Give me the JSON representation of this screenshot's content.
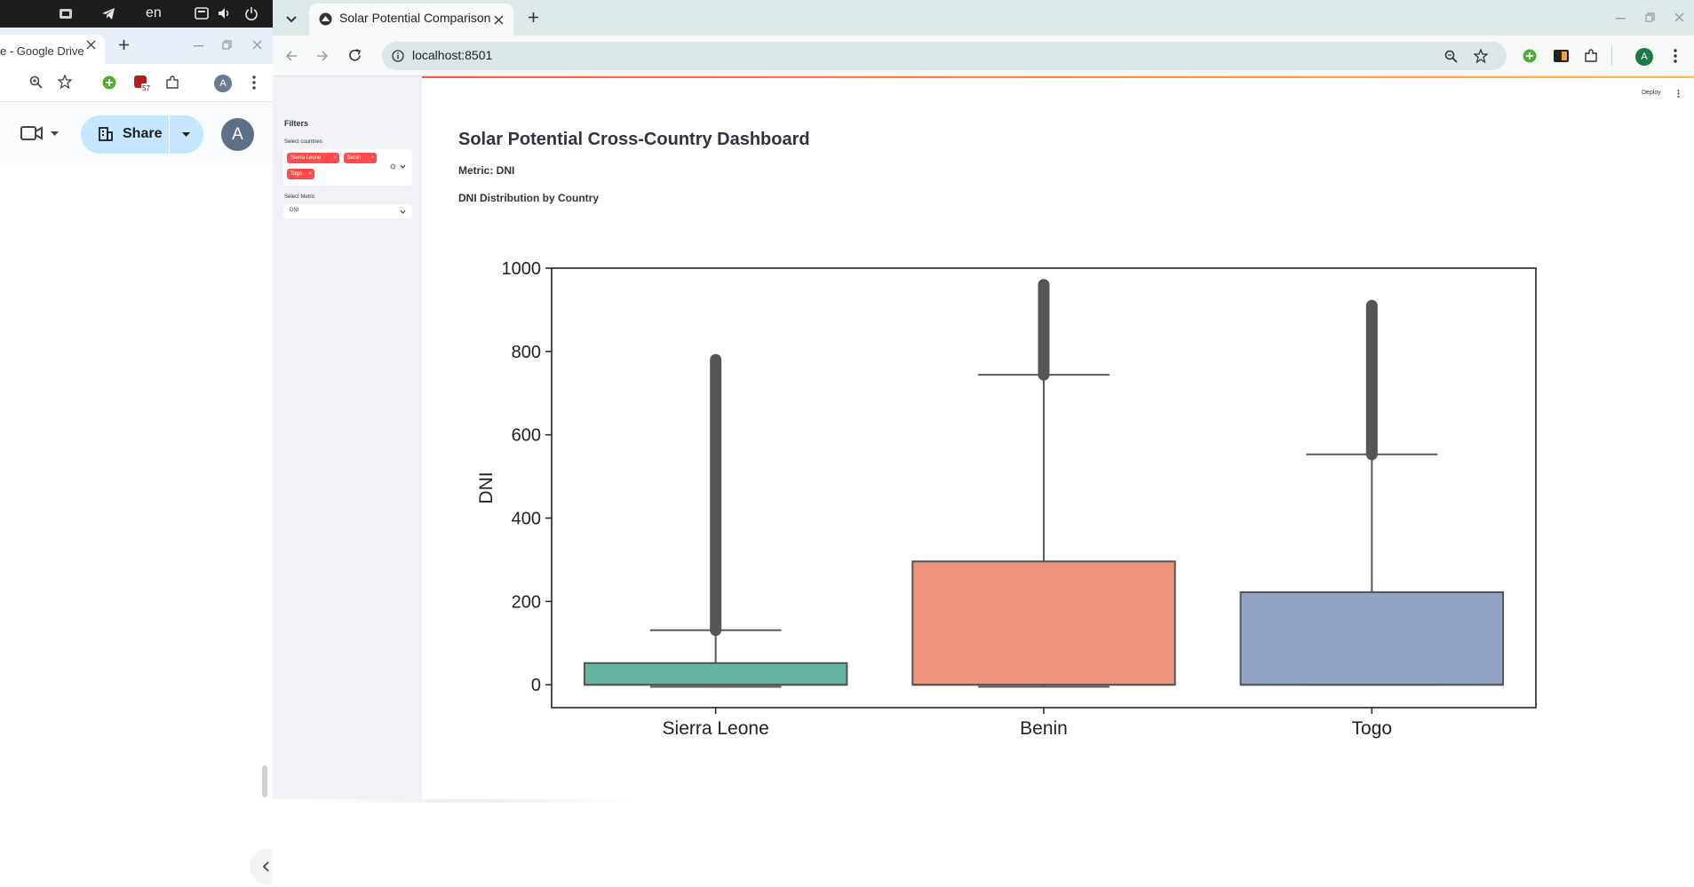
{
  "system": {
    "language": "en"
  },
  "left_window": {
    "tab_title": "e - Google Drive",
    "share_label": "Share",
    "avatar_letter": "A",
    "notification_count": "57"
  },
  "browser": {
    "tab_title": "Solar Potential Comparison",
    "url": "localhost:8501",
    "avatar_letter": "A"
  },
  "app": {
    "deploy_label": "Deploy",
    "sidebar": {
      "heading": "Filters",
      "countries_label": "Select countries",
      "selected_countries": [
        "Sierra Leone",
        "Benin",
        "Togo"
      ],
      "metric_label": "Select Metric",
      "metric_value": "DNI"
    },
    "title": "Solar Potential Cross-Country Dashboard",
    "metric_text": "Metric: DNI",
    "chart_heading": "DNI Distribution by Country"
  },
  "chart_data": {
    "type": "box",
    "title": "",
    "xlabel": "",
    "ylabel": "DNI",
    "ylim": [
      -55,
      1000
    ],
    "yticks": [
      0,
      200,
      400,
      600,
      800,
      1000
    ],
    "grid": false,
    "categories": [
      "Sierra Leone",
      "Benin",
      "Togo"
    ],
    "colors": [
      "#66b3a1",
      "#ee947a",
      "#93a3c2"
    ],
    "boxes": [
      {
        "name": "Sierra Leone",
        "whisker_low": -5,
        "q1": 0,
        "median": 0,
        "q3": 52,
        "whisker_high": 131,
        "outlier_min": 131,
        "outlier_max": 780
      },
      {
        "name": "Benin",
        "whisker_low": -5,
        "q1": 0,
        "median": 0,
        "q3": 296,
        "whisker_high": 744,
        "outlier_min": 744,
        "outlier_max": 960
      },
      {
        "name": "Togo",
        "whisker_low": 0,
        "q1": 0,
        "median": 0,
        "q3": 222,
        "whisker_high": 553,
        "outlier_min": 553,
        "outlier_max": 910
      }
    ]
  }
}
